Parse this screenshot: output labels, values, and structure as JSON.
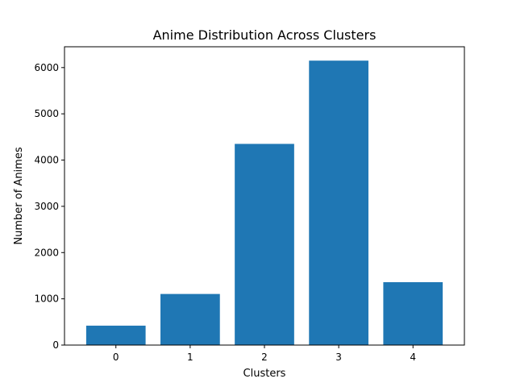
{
  "chart_data": {
    "type": "bar",
    "title": "Anime Distribution Across Clusters",
    "xlabel": "Clusters",
    "ylabel": "Number of Animes",
    "categories": [
      "0",
      "1",
      "2",
      "3",
      "4"
    ],
    "values": [
      420,
      1105,
      4350,
      6150,
      1360
    ],
    "ylim": [
      0,
      6450
    ],
    "yticks": [
      0,
      1000,
      2000,
      3000,
      4000,
      5000,
      6000
    ],
    "bar_color": "#1f77b4",
    "grid": false,
    "legend": "none"
  }
}
